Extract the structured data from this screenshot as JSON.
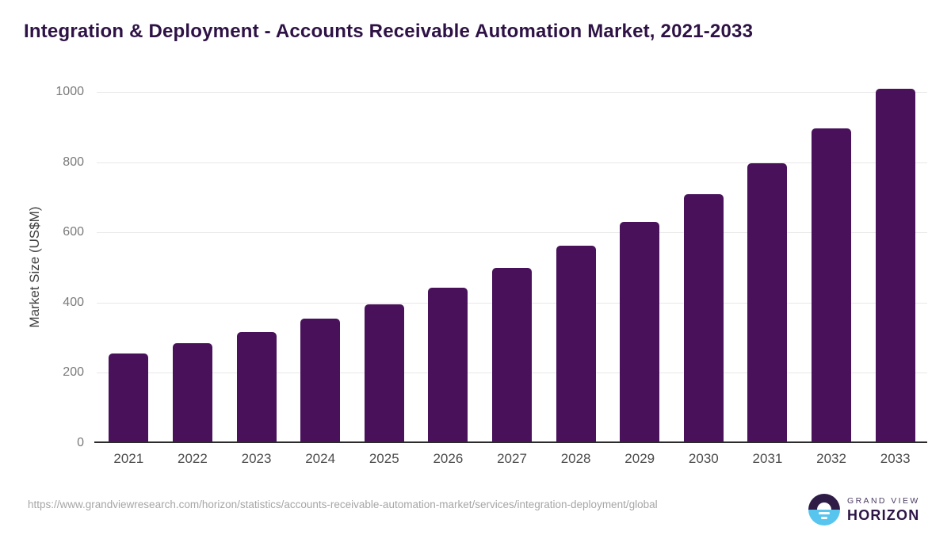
{
  "title": "Integration & Deployment - Accounts Receivable Automation Market, 2021-2033",
  "chart_data": {
    "type": "bar",
    "title": "Integration & Deployment - Accounts Receivable Automation Market, 2021-2033",
    "categories": [
      "2021",
      "2022",
      "2023",
      "2024",
      "2025",
      "2026",
      "2027",
      "2028",
      "2029",
      "2030",
      "2031",
      "2032",
      "2033"
    ],
    "values": [
      256,
      284,
      316,
      354,
      395,
      443,
      500,
      561,
      630,
      709,
      797,
      896,
      1010
    ],
    "xlabel": "",
    "ylabel": "Market Size (US$M)",
    "ylim": [
      0,
      1000
    ],
    "yticks": [
      0,
      200,
      400,
      600,
      800,
      1000
    ],
    "grid": true,
    "legend": "none",
    "bar_color": "#48115a"
  },
  "footer": {
    "source_url": "https://www.grandviewresearch.com/horizon/statistics/accounts-receivable-automation-market/services/integration-deployment/global"
  },
  "logo": {
    "top_text": "GRAND VIEW",
    "bottom_text": "HORIZON"
  },
  "colors": {
    "bar_color": "#48115a",
    "title_color": "#2e1245",
    "grid_color": "#e8e8e8",
    "axis_line_color": "#2b2b2b",
    "ytick_color": "#7a7a7a",
    "xtick_color": "#4c4c4c",
    "ylabel_color": "#404040",
    "url_color": "#a6a6a6",
    "logo_purple": "#2e1c47",
    "logo_blue": "#58c5ef",
    "logo_text_top_color": "#4a3b63",
    "logo_text_bottom_color": "#2e1546"
  }
}
